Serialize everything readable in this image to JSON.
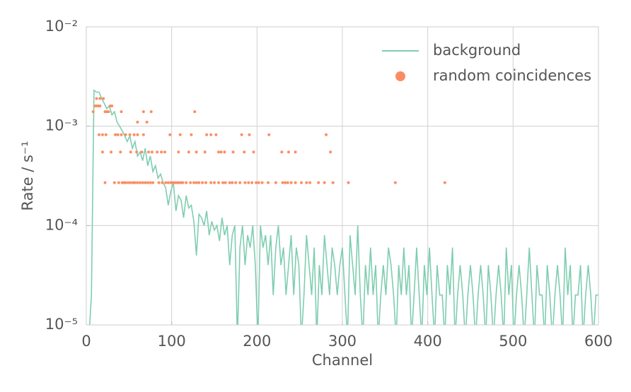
{
  "chart_data": {
    "type": "line",
    "xlabel": "Channel",
    "ylabel": "Rate / s⁻¹",
    "xlim": [
      0,
      600
    ],
    "xticks": [
      0,
      100,
      200,
      300,
      400,
      500,
      600
    ],
    "ylim": [
      1e-05,
      0.01
    ],
    "log_y": true,
    "yticks": [
      {
        "value": 1e-05,
        "label": "10⁻⁵"
      },
      {
        "value": 0.0001,
        "label": "10⁻⁴"
      },
      {
        "value": 0.001,
        "label": "10⁻³"
      },
      {
        "value": 0.01,
        "label": "10⁻²"
      }
    ],
    "grid": true,
    "legend": "upper right",
    "series": [
      {
        "name": "background",
        "type": "line",
        "color": "#7fcdb0",
        "x": [
          0,
          3,
          6,
          9,
          12,
          15,
          18,
          21,
          24,
          27,
          30,
          33,
          36,
          39,
          42,
          45,
          48,
          51,
          54,
          57,
          60,
          63,
          66,
          69,
          72,
          75,
          78,
          81,
          84,
          87,
          90,
          93,
          96,
          99,
          102,
          105,
          108,
          111,
          114,
          117,
          120,
          123,
          126,
          129,
          132,
          135,
          138,
          141,
          144,
          147,
          150,
          153,
          156,
          159,
          162,
          165,
          168,
          171,
          174,
          177,
          180,
          183,
          186,
          189,
          192,
          195,
          198,
          201,
          204,
          207,
          210,
          213,
          216,
          219,
          222,
          225,
          228,
          231,
          234,
          237,
          240,
          243,
          246,
          249,
          252,
          255,
          258,
          261,
          264,
          267,
          270,
          273,
          276,
          279,
          282,
          285,
          288,
          291,
          294,
          297,
          300,
          303,
          306,
          309,
          312,
          315,
          318,
          321,
          324,
          327,
          330,
          333,
          336,
          339,
          342,
          345,
          348,
          351,
          354,
          357,
          360,
          363,
          366,
          369,
          372,
          375,
          378,
          381,
          384,
          387,
          390,
          393,
          396,
          399,
          402,
          405,
          408,
          411,
          414,
          417,
          420,
          423,
          426,
          429,
          432,
          435,
          438,
          441,
          444,
          447,
          450,
          453,
          456,
          459,
          462,
          465,
          468,
          471,
          474,
          477,
          480,
          483,
          486,
          489,
          492,
          495,
          498,
          501,
          504,
          507,
          510,
          513,
          516,
          519,
          522,
          525,
          528,
          531,
          534,
          537,
          540,
          543,
          546,
          549,
          552,
          555,
          558,
          561,
          564,
          567,
          570,
          573,
          576,
          579,
          582,
          585,
          588,
          591,
          594,
          597,
          600
        ],
        "values": [
          0,
          0,
          2e-05,
          0.0023,
          0.0022,
          0.0022,
          0.0019,
          0.0017,
          0.0015,
          0.0016,
          0.0013,
          0.0014,
          0.0011,
          0.001,
          0.0009,
          0.0008,
          0.0007,
          0.0008,
          0.0006,
          0.0007,
          0.0005,
          0.00055,
          0.00045,
          0.0006,
          0.0004,
          0.0005,
          0.00035,
          0.0004,
          0.0003,
          0.00033,
          0.00027,
          0.00024,
          0.00016,
          0.00022,
          0.00027,
          0.00014,
          0.0002,
          0.00018,
          0.00012,
          0.0002,
          0.00015,
          0.00016,
          0.00011,
          5e-05,
          0.00013,
          0.00012,
          0.0001,
          0.00014,
          8e-05,
          0.00011,
          9e-05,
          0.0001,
          7e-05,
          0.00012,
          8e-05,
          0.0001,
          4e-05,
          8e-05,
          0.0001,
          0,
          6e-05,
          0.0001,
          4e-05,
          8e-05,
          6e-05,
          0.0001,
          4e-05,
          0,
          0.0001,
          6e-05,
          8e-05,
          4e-05,
          8e-05,
          2e-05,
          6e-05,
          0.0001,
          4e-05,
          6e-05,
          2e-05,
          4e-05,
          8e-05,
          2e-05,
          6e-05,
          4e-05,
          0,
          2e-05,
          8e-05,
          4e-05,
          2e-05,
          6e-05,
          0,
          4e-05,
          2e-05,
          8e-05,
          4e-05,
          2e-05,
          6e-05,
          4e-05,
          2e-05,
          4e-05,
          6e-05,
          2e-05,
          0,
          8e-05,
          4e-05,
          2e-05,
          0.0001,
          2e-05,
          0,
          4e-05,
          2e-05,
          6e-05,
          2e-05,
          4e-05,
          0,
          2e-05,
          4e-05,
          2e-05,
          6e-05,
          4e-05,
          2e-05,
          0,
          4e-05,
          2e-05,
          6e-05,
          2e-05,
          4e-05,
          0,
          2e-05,
          6e-05,
          2e-05,
          0,
          4e-05,
          2e-05,
          6e-05,
          2e-05,
          0,
          4e-05,
          2e-05,
          2e-05,
          0,
          4e-05,
          2e-05,
          6e-05,
          0,
          2e-05,
          4e-05,
          2e-05,
          0,
          2e-05,
          4e-05,
          2e-05,
          0,
          2e-05,
          4e-05,
          2e-05,
          0,
          4e-05,
          2e-05,
          0,
          2e-05,
          4e-05,
          2e-05,
          0,
          6e-05,
          2e-05,
          4e-05,
          0,
          2e-05,
          4e-05,
          2e-05,
          0,
          2e-05,
          6e-05,
          2e-05,
          0,
          4e-05,
          2e-05,
          2e-05,
          0,
          4e-05,
          2e-05,
          0,
          2e-05,
          4e-05,
          2e-05,
          0,
          6e-05,
          2e-05,
          4e-05,
          0,
          2e-05,
          2e-05,
          4e-05,
          0,
          2e-05,
          4e-05,
          2e-05,
          0,
          2e-05,
          2e-05
        ]
      },
      {
        "name": "random coincidences",
        "type": "scatter",
        "color": "#fc8d62",
        "x": [
          12,
          16,
          20,
          10,
          12,
          14,
          16,
          28,
          30,
          8,
          22,
          24,
          26,
          41,
          67,
          76,
          127,
          60,
          71,
          15,
          19,
          23,
          34,
          37,
          41,
          46,
          51,
          56,
          60,
          67,
          98,
          110,
          123,
          141,
          146,
          152,
          182,
          191,
          214,
          281,
          19,
          29,
          40,
          52,
          59,
          65,
          73,
          77,
          83,
          88,
          92,
          108,
          120,
          129,
          139,
          155,
          158,
          162,
          172,
          185,
          196,
          229,
          237,
          245,
          286,
          22,
          33,
          38,
          42,
          44,
          46,
          49,
          52,
          55,
          57,
          60,
          63,
          66,
          69,
          72,
          75,
          78,
          85,
          89,
          93,
          96,
          99,
          101,
          103,
          105,
          107,
          109,
          111,
          113,
          117,
          122,
          126,
          129,
          132,
          136,
          140,
          146,
          150,
          155,
          160,
          163,
          168,
          171,
          175,
          180,
          186,
          190,
          194,
          199,
          202,
          206,
          213,
          222,
          230,
          233,
          236,
          240,
          245,
          252,
          258,
          262,
          272,
          279,
          289,
          307,
          362,
          420
        ],
        "values": [
          0.0019,
          0.0019,
          0.0019,
          0.0016,
          0.0016,
          0.0016,
          0.0016,
          0.0016,
          0.0016,
          0.0014,
          0.0014,
          0.0014,
          0.0014,
          0.0014,
          0.0014,
          0.0014,
          0.0014,
          0.0011,
          0.0011,
          0.00082,
          0.00082,
          0.00082,
          0.00082,
          0.00082,
          0.00082,
          0.00082,
          0.00082,
          0.00082,
          0.00082,
          0.00082,
          0.00082,
          0.00082,
          0.00082,
          0.00082,
          0.00082,
          0.00082,
          0.00082,
          0.00082,
          0.00082,
          0.00082,
          0.00055,
          0.00055,
          0.00055,
          0.00055,
          0.00055,
          0.00055,
          0.00055,
          0.00055,
          0.00055,
          0.00055,
          0.00055,
          0.00055,
          0.00055,
          0.00055,
          0.00055,
          0.00055,
          0.00055,
          0.00055,
          0.00055,
          0.00055,
          0.00055,
          0.00055,
          0.00055,
          0.00055,
          0.00055,
          0.00027,
          0.00027,
          0.00027,
          0.00027,
          0.00027,
          0.00027,
          0.00027,
          0.00027,
          0.00027,
          0.00027,
          0.00027,
          0.00027,
          0.00027,
          0.00027,
          0.00027,
          0.00027,
          0.00027,
          0.00027,
          0.00027,
          0.00027,
          0.00027,
          0.00027,
          0.00027,
          0.00027,
          0.00027,
          0.00027,
          0.00027,
          0.00027,
          0.00027,
          0.00027,
          0.00027,
          0.00027,
          0.00027,
          0.00027,
          0.00027,
          0.00027,
          0.00027,
          0.00027,
          0.00027,
          0.00027,
          0.00027,
          0.00027,
          0.00027,
          0.00027,
          0.00027,
          0.00027,
          0.00027,
          0.00027,
          0.00027,
          0.00027,
          0.00027,
          0.00027,
          0.00027,
          0.00027,
          0.00027,
          0.00027,
          0.00027,
          0.00027,
          0.00027,
          0.00027,
          0.00027,
          0.00027,
          0.00027,
          0.00027,
          0.00027,
          0.00027,
          0.00027
        ]
      }
    ]
  }
}
